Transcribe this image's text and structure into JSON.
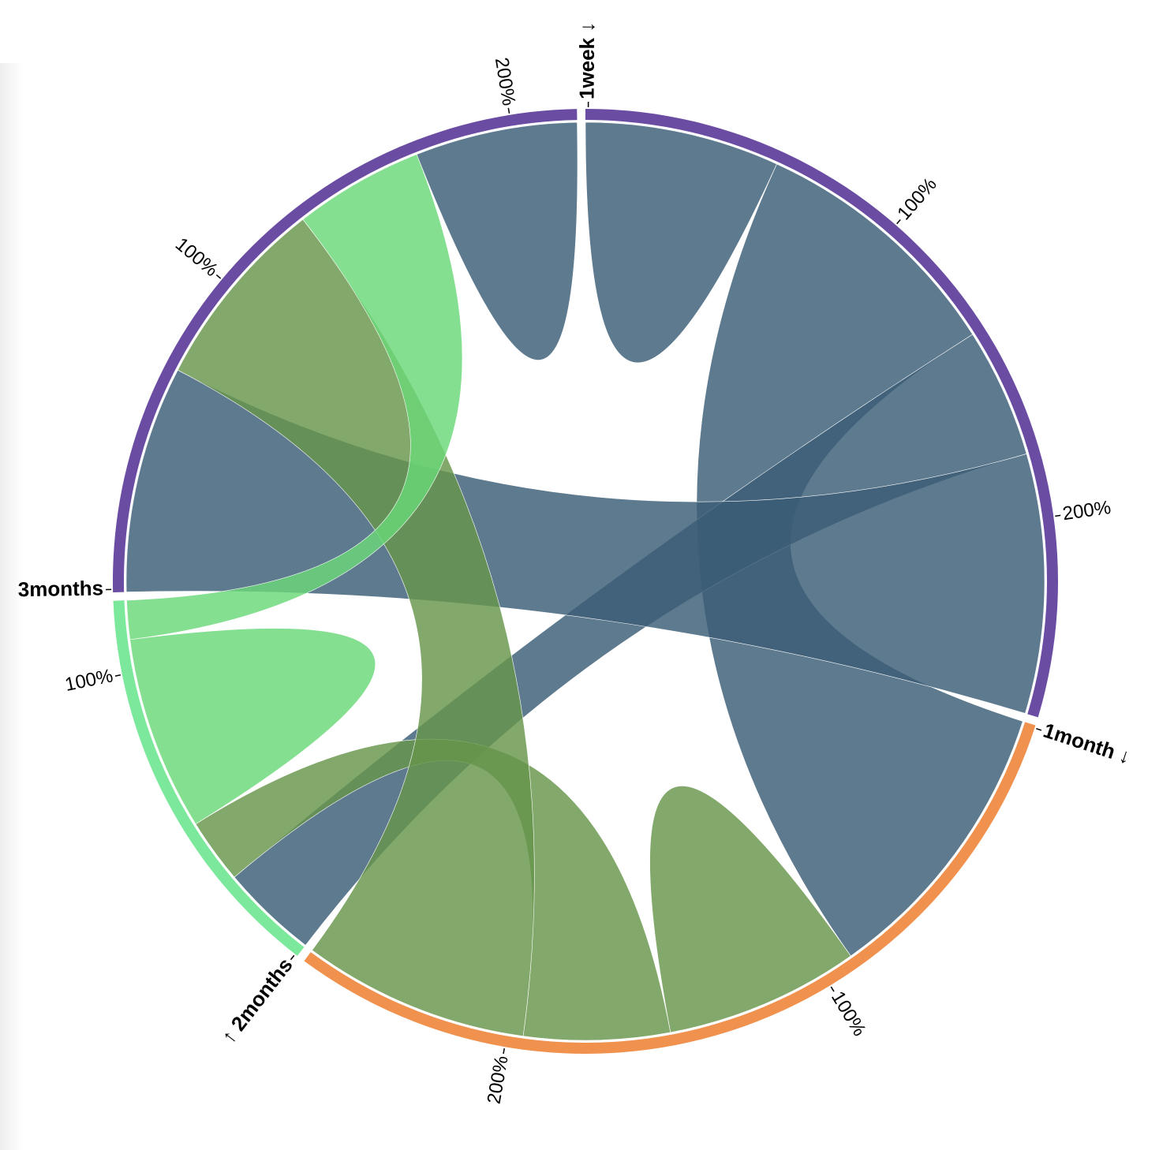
{
  "chart_data": {
    "type": "chord",
    "groups": [
      "1week ↓",
      "1month ↓",
      "↑ 2months",
      "3months"
    ],
    "group_colors": [
      "#6a4ca3",
      "#f0924e",
      "#7be89b",
      "#6a4ca3"
    ],
    "chord_colors": [
      "#3a5d75",
      "#66954a",
      "#6ad878",
      "#3a5d75"
    ],
    "matrix": [
      [
        60,
        80,
        40,
        80
      ],
      [
        90,
        60,
        45,
        70
      ],
      [
        30,
        20,
        60,
        12
      ],
      [
        70,
        60,
        40,
        50
      ]
    ],
    "ticks": [
      {
        "value": 100,
        "label": "100%"
      },
      {
        "value": 200,
        "label": "200%"
      }
    ]
  }
}
